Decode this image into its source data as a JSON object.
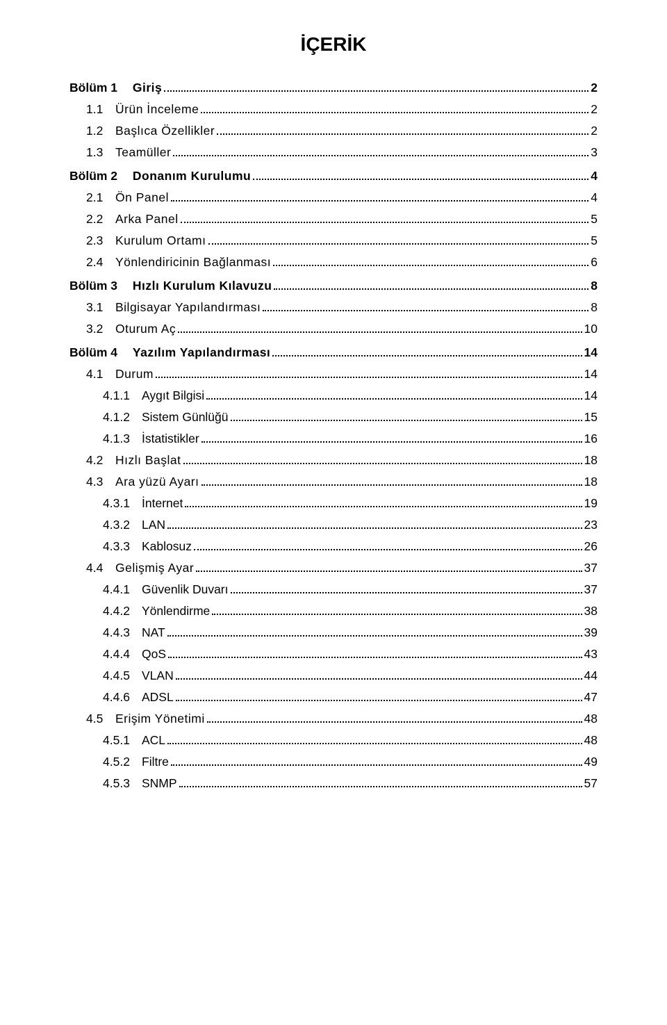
{
  "title": "İÇERİK",
  "entries": [
    {
      "level": "chapter",
      "num": "Bölüm 1",
      "text": "Giriş",
      "page": "2"
    },
    {
      "level": "section",
      "num": "1.1",
      "text": "Ürün İnceleme",
      "page": "2"
    },
    {
      "level": "section",
      "num": "1.2",
      "text": "Başlıca Özellikler",
      "page": "2"
    },
    {
      "level": "section",
      "num": "1.3",
      "text": "Teamüller",
      "page": "3"
    },
    {
      "level": "chapter",
      "num": "Bölüm 2",
      "text": "Donanım Kurulumu",
      "page": "4"
    },
    {
      "level": "section",
      "num": "2.1",
      "text": "Ön Panel",
      "page": "4"
    },
    {
      "level": "section",
      "num": "2.2",
      "text": "Arka Panel",
      "page": "5"
    },
    {
      "level": "section",
      "num": "2.3",
      "text": "Kurulum Ortamı",
      "page": "5"
    },
    {
      "level": "section",
      "num": "2.4",
      "text": "Yönlendiricinin Bağlanması",
      "page": "6"
    },
    {
      "level": "chapter",
      "num": "Bölüm 3",
      "text": "Hızlı Kurulum Kılavuzu",
      "page": "8"
    },
    {
      "level": "section",
      "num": "3.1",
      "text": "Bilgisayar Yapılandırması",
      "page": "8"
    },
    {
      "level": "section",
      "num": "3.2",
      "text": "Oturum Aç",
      "page": "10"
    },
    {
      "level": "chapter",
      "num": "Bölüm 4",
      "text": "Yazılım Yapılandırması",
      "page": "14"
    },
    {
      "level": "section",
      "num": "4.1",
      "text": "Durum",
      "page": "14"
    },
    {
      "level": "subsection",
      "num": "4.1.1",
      "text": "Aygıt Bilgisi",
      "page": "14"
    },
    {
      "level": "subsection",
      "num": "4.1.2",
      "text": "Sistem Günlüğü",
      "page": "15"
    },
    {
      "level": "subsection",
      "num": "4.1.3",
      "text": "İstatistikler",
      "page": "16"
    },
    {
      "level": "section",
      "num": "4.2",
      "text": "Hızlı Başlat",
      "page": "18"
    },
    {
      "level": "section",
      "num": "4.3",
      "text": "Ara yüzü Ayarı",
      "page": "18"
    },
    {
      "level": "subsection",
      "num": "4.3.1",
      "text": "İnternet",
      "page": "19"
    },
    {
      "level": "subsection",
      "num": "4.3.2",
      "text": "LAN",
      "page": "23"
    },
    {
      "level": "subsection",
      "num": "4.3.3",
      "text": "Kablosuz",
      "page": "26"
    },
    {
      "level": "section",
      "num": "4.4",
      "text": "Gelişmiş Ayar",
      "page": "37"
    },
    {
      "level": "subsection",
      "num": "4.4.1",
      "text": "Güvenlik Duvarı",
      "page": "37"
    },
    {
      "level": "subsection",
      "num": "4.4.2",
      "text": "Yönlendirme",
      "page": "38"
    },
    {
      "level": "subsection",
      "num": "4.4.3",
      "text": "NAT",
      "page": "39"
    },
    {
      "level": "subsection",
      "num": "4.4.4",
      "text": "QoS",
      "page": "43"
    },
    {
      "level": "subsection",
      "num": "4.4.5",
      "text": "VLAN",
      "page": "44"
    },
    {
      "level": "subsection",
      "num": "4.4.6",
      "text": "ADSL",
      "page": "47"
    },
    {
      "level": "section",
      "num": "4.5",
      "text": "Erişim Yönetimi",
      "page": "48"
    },
    {
      "level": "subsection",
      "num": "4.5.1",
      "text": "ACL",
      "page": "48"
    },
    {
      "level": "subsection",
      "num": "4.5.2",
      "text": "Filtre",
      "page": "49"
    },
    {
      "level": "subsection",
      "num": "4.5.3",
      "text": "SNMP",
      "page": "57"
    }
  ]
}
